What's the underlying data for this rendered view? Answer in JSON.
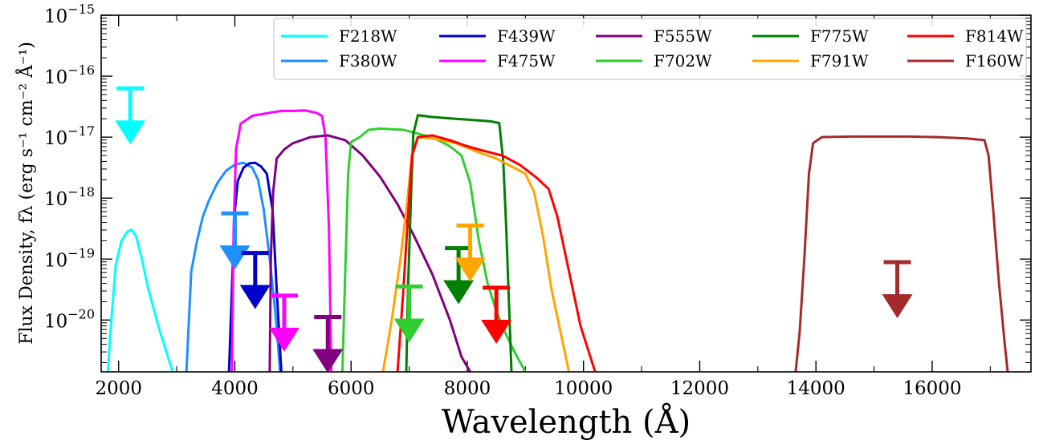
{
  "chart_data": {
    "type": "line",
    "xlabel": "Wavelength (Å)",
    "ylabel": "Flux Density, fλ (erg s⁻¹ cm⁻² Å⁻¹)",
    "xlim": [
      1700,
      17700
    ],
    "ylim_log10": [
      -20.85,
      -15.0
    ],
    "y_scale": "log",
    "x_ticks": [
      2000,
      4000,
      6000,
      8000,
      10000,
      12000,
      14000,
      16000
    ],
    "y_tick_exponents": [
      -20,
      -19,
      -18,
      -17,
      -16,
      -15
    ],
    "legend_position": "top-right",
    "legend_columns": 5,
    "series": [
      {
        "name": "F218W",
        "color": "#00ffff",
        "points": [
          [
            1780,
            -21.5
          ],
          [
            1850,
            -20.3
          ],
          [
            1950,
            -19.1
          ],
          [
            2050,
            -18.7
          ],
          [
            2150,
            -18.55
          ],
          [
            2220,
            -18.52
          ],
          [
            2300,
            -18.62
          ],
          [
            2400,
            -19.0
          ],
          [
            2500,
            -19.45
          ],
          [
            2600,
            -19.8
          ],
          [
            2700,
            -20.15
          ],
          [
            2800,
            -20.45
          ],
          [
            2930,
            -20.85
          ]
        ]
      },
      {
        "name": "F380W",
        "color": "#1e90ff",
        "points": [
          [
            3150,
            -21.2
          ],
          [
            3250,
            -19.2
          ],
          [
            3350,
            -18.7
          ],
          [
            3450,
            -18.3
          ],
          [
            3550,
            -18.05
          ],
          [
            3700,
            -17.75
          ],
          [
            3850,
            -17.55
          ],
          [
            4000,
            -17.45
          ],
          [
            4150,
            -17.42
          ],
          [
            4300,
            -17.5
          ],
          [
            4400,
            -17.7
          ],
          [
            4500,
            -18.2
          ],
          [
            4600,
            -19.0
          ],
          [
            4700,
            -19.9
          ],
          [
            4780,
            -20.85
          ]
        ]
      },
      {
        "name": "F439W",
        "color": "#0000cd",
        "points": [
          [
            3900,
            -20.85
          ],
          [
            3950,
            -19.5
          ],
          [
            4000,
            -18.2
          ],
          [
            4050,
            -17.72
          ],
          [
            4150,
            -17.5
          ],
          [
            4250,
            -17.43
          ],
          [
            4350,
            -17.42
          ],
          [
            4450,
            -17.48
          ],
          [
            4550,
            -17.6
          ],
          [
            4650,
            -18.2
          ],
          [
            4720,
            -19.5
          ],
          [
            4800,
            -20.85
          ]
        ]
      },
      {
        "name": "F475W",
        "color": "#ff00ff",
        "points": [
          [
            3950,
            -20.85
          ],
          [
            3980,
            -18.5
          ],
          [
            4020,
            -17.2
          ],
          [
            4100,
            -16.78
          ],
          [
            4300,
            -16.65
          ],
          [
            4600,
            -16.6
          ],
          [
            4800,
            -16.57
          ],
          [
            5000,
            -16.57
          ],
          [
            5200,
            -16.56
          ],
          [
            5400,
            -16.6
          ],
          [
            5500,
            -16.65
          ],
          [
            5560,
            -17.0
          ],
          [
            5620,
            -18.5
          ],
          [
            5660,
            -20.85
          ]
        ]
      },
      {
        "name": "F555W",
        "color": "#800080",
        "points": [
          [
            4600,
            -20.85
          ],
          [
            4620,
            -19.0
          ],
          [
            4660,
            -17.9
          ],
          [
            4720,
            -17.35
          ],
          [
            4850,
            -17.2
          ],
          [
            5000,
            -17.1
          ],
          [
            5300,
            -17.0
          ],
          [
            5600,
            -16.97
          ],
          [
            5900,
            -17.05
          ],
          [
            6200,
            -17.3
          ],
          [
            6500,
            -17.65
          ],
          [
            6800,
            -18.1
          ],
          [
            7100,
            -18.65
          ],
          [
            7400,
            -19.25
          ],
          [
            7700,
            -20.0
          ],
          [
            7900,
            -20.6
          ],
          [
            8050,
            -20.85
          ]
        ]
      },
      {
        "name": "F702W",
        "color": "#32cd32",
        "points": [
          [
            5850,
            -20.85
          ],
          [
            5900,
            -19.2
          ],
          [
            5950,
            -17.6
          ],
          [
            6000,
            -17.08
          ],
          [
            6150,
            -17.0
          ],
          [
            6300,
            -16.88
          ],
          [
            6500,
            -16.86
          ],
          [
            6700,
            -16.87
          ],
          [
            6900,
            -16.88
          ],
          [
            7100,
            -16.93
          ],
          [
            7300,
            -16.98
          ],
          [
            7500,
            -17.05
          ],
          [
            7700,
            -17.15
          ],
          [
            7900,
            -17.3
          ],
          [
            8050,
            -17.75
          ],
          [
            8200,
            -18.7
          ],
          [
            8350,
            -19.4
          ],
          [
            8500,
            -19.85
          ],
          [
            8650,
            -20.2
          ],
          [
            8800,
            -20.5
          ],
          [
            9000,
            -20.85
          ]
        ]
      },
      {
        "name": "F775W",
        "color": "#008000",
        "points": [
          [
            6950,
            -20.85
          ],
          [
            6980,
            -19.5
          ],
          [
            7030,
            -18.0
          ],
          [
            7070,
            -16.95
          ],
          [
            7150,
            -16.64
          ],
          [
            7400,
            -16.67
          ],
          [
            7800,
            -16.7
          ],
          [
            8100,
            -16.72
          ],
          [
            8400,
            -16.74
          ],
          [
            8550,
            -16.77
          ],
          [
            8620,
            -17.4
          ],
          [
            8670,
            -18.5
          ],
          [
            8720,
            -19.8
          ],
          [
            8760,
            -20.85
          ]
        ]
      },
      {
        "name": "F791W",
        "color": "#ffa500",
        "points": [
          [
            6550,
            -20.85
          ],
          [
            6700,
            -20.0
          ],
          [
            6850,
            -19.0
          ],
          [
            6950,
            -18.2
          ],
          [
            7050,
            -17.3
          ],
          [
            7150,
            -17.0
          ],
          [
            7400,
            -17.02
          ],
          [
            7800,
            -17.1
          ],
          [
            8200,
            -17.25
          ],
          [
            8500,
            -17.35
          ],
          [
            8800,
            -17.5
          ],
          [
            9000,
            -17.6
          ],
          [
            9150,
            -17.9
          ],
          [
            9300,
            -18.6
          ],
          [
            9450,
            -19.5
          ],
          [
            9650,
            -20.4
          ],
          [
            9750,
            -20.85
          ]
        ]
      },
      {
        "name": "F814W",
        "color": "#ff0000",
        "points": [
          [
            6800,
            -20.85
          ],
          [
            6900,
            -19.5
          ],
          [
            6980,
            -18.3
          ],
          [
            7050,
            -17.3
          ],
          [
            7150,
            -17.0
          ],
          [
            7400,
            -16.97
          ],
          [
            7700,
            -17.05
          ],
          [
            8000,
            -17.15
          ],
          [
            8300,
            -17.23
          ],
          [
            8600,
            -17.3
          ],
          [
            8900,
            -17.45
          ],
          [
            9200,
            -17.67
          ],
          [
            9400,
            -17.85
          ],
          [
            9550,
            -18.3
          ],
          [
            9750,
            -19.2
          ],
          [
            9950,
            -20.1
          ],
          [
            10200,
            -20.85
          ]
        ]
      },
      {
        "name": "F160W",
        "color": "#a52a2a",
        "points": [
          [
            13650,
            -20.85
          ],
          [
            13720,
            -20.2
          ],
          [
            13800,
            -19.0
          ],
          [
            13880,
            -17.6
          ],
          [
            13950,
            -17.1
          ],
          [
            14100,
            -17.0
          ],
          [
            14600,
            -16.99
          ],
          [
            15100,
            -16.99
          ],
          [
            15600,
            -16.99
          ],
          [
            16100,
            -17.0
          ],
          [
            16600,
            -17.02
          ],
          [
            16900,
            -17.05
          ],
          [
            16970,
            -17.3
          ],
          [
            17050,
            -18.2
          ],
          [
            17150,
            -19.4
          ],
          [
            17250,
            -20.4
          ],
          [
            17300,
            -20.85
          ]
        ]
      }
    ],
    "upper_limits": [
      {
        "name": "F218W",
        "color": "#00ffff",
        "x": 2200,
        "log10_limit": -16.2
      },
      {
        "name": "F380W",
        "color": "#1e90ff",
        "x": 4000,
        "log10_limit": -18.25
      },
      {
        "name": "F439W",
        "color": "#0000cd",
        "x": 4350,
        "log10_limit": -18.9
      },
      {
        "name": "F475W",
        "color": "#ff00ff",
        "x": 4850,
        "log10_limit": -19.6
      },
      {
        "name": "F555W",
        "color": "#800080",
        "x": 5600,
        "log10_limit": -19.95
      },
      {
        "name": "F702W",
        "color": "#32cd32",
        "x": 7000,
        "log10_limit": -19.45
      },
      {
        "name": "F775W",
        "color": "#008000",
        "x": 7850,
        "log10_limit": -18.82
      },
      {
        "name": "F791W",
        "color": "#ffa500",
        "x": 8050,
        "log10_limit": -18.45
      },
      {
        "name": "F814W",
        "color": "#ff0000",
        "x": 8500,
        "log10_limit": -19.47
      },
      {
        "name": "F160W",
        "color": "#a52a2a",
        "x": 15400,
        "log10_limit": -19.05
      }
    ]
  }
}
